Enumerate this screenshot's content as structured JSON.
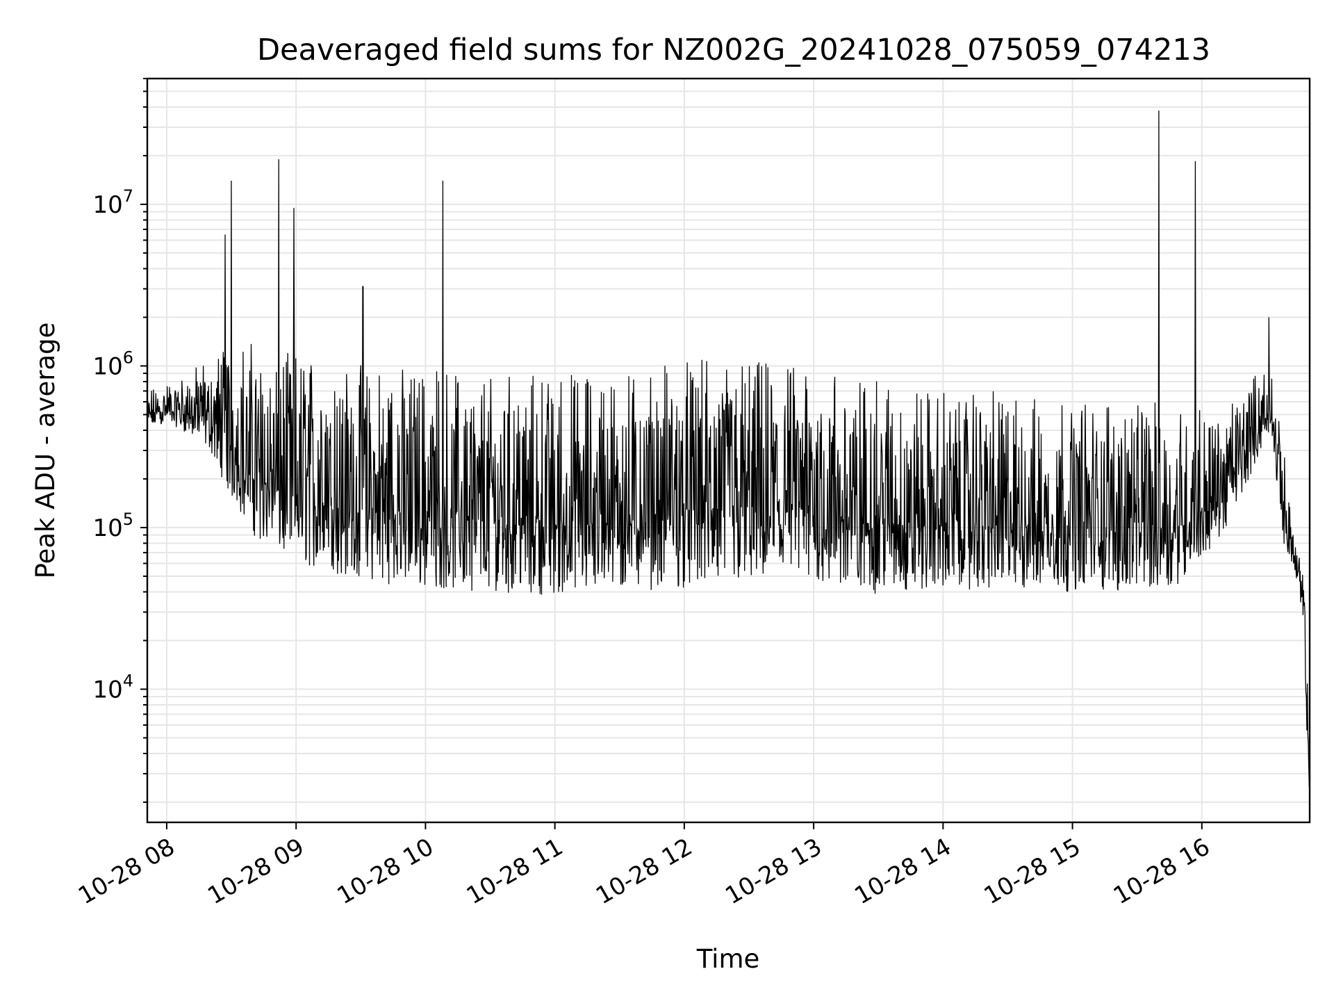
{
  "chart_data": {
    "type": "line",
    "title": "Deaveraged field sums for NZ002G_20241028_075059_074213",
    "xlabel": "Time",
    "ylabel": "Peak ADU - average",
    "yscale": "log",
    "ylim": [
      1500,
      60000000
    ],
    "xlim": [
      "2024-10-28 07:51",
      "2024-10-28 16:50"
    ],
    "grid": true,
    "grid_minor": true,
    "line_color": "#000000",
    "x_ticks": [
      {
        "t": "2024-10-28 08:00",
        "label": "10-28 08"
      },
      {
        "t": "2024-10-28 09:00",
        "label": "10-28 09"
      },
      {
        "t": "2024-10-28 10:00",
        "label": "10-28 10"
      },
      {
        "t": "2024-10-28 11:00",
        "label": "10-28 11"
      },
      {
        "t": "2024-10-28 12:00",
        "label": "10-28 12"
      },
      {
        "t": "2024-10-28 13:00",
        "label": "10-28 13"
      },
      {
        "t": "2024-10-28 14:00",
        "label": "10-28 14"
      },
      {
        "t": "2024-10-28 15:00",
        "label": "10-28 15"
      },
      {
        "t": "2024-10-28 16:00",
        "label": "10-28 16"
      }
    ],
    "y_ticks": [
      {
        "value": 10000,
        "base": "10",
        "exp": "4"
      },
      {
        "value": 100000,
        "base": "10",
        "exp": "5"
      },
      {
        "value": 1000000,
        "base": "10",
        "exp": "6"
      },
      {
        "value": 10000000,
        "base": "10",
        "exp": "7"
      }
    ],
    "series": [
      {
        "values_approx": "dense noisy trace",
        "x": [
          "2024-10-28 07:51",
          "2024-10-28 08:00",
          "2024-10-28 08:10",
          "2024-10-28 08:20",
          "2024-10-28 08:30",
          "2024-10-28 08:40",
          "2024-10-28 08:50",
          "2024-10-28 09:00",
          "2024-10-28 09:20",
          "2024-10-28 09:40",
          "2024-10-28 10:00",
          "2024-10-28 10:30",
          "2024-10-28 11:00",
          "2024-10-28 11:30",
          "2024-10-28 12:00",
          "2024-10-28 12:30",
          "2024-10-28 13:00",
          "2024-10-28 13:30",
          "2024-10-28 14:00",
          "2024-10-28 14:30",
          "2024-10-28 15:00",
          "2024-10-28 15:30",
          "2024-10-28 15:50",
          "2024-10-28 16:10",
          "2024-10-28 16:25",
          "2024-10-28 16:32",
          "2024-10-28 16:38",
          "2024-10-28 16:43",
          "2024-10-28 16:47",
          "2024-10-28 16:50"
        ],
        "low": [
          400000,
          450000,
          380000,
          300000,
          150000,
          90000,
          70000,
          60000,
          50000,
          45000,
          42000,
          40000,
          38000,
          40000,
          42000,
          45000,
          45000,
          38000,
          42000,
          40000,
          40000,
          40000,
          45000,
          90000,
          250000,
          400000,
          80000,
          55000,
          20000,
          2000
        ],
        "high": [
          700000,
          800000,
          900000,
          1200000,
          1500000,
          1400000,
          1300000,
          1200000,
          1100000,
          1000000,
          1000000,
          1000000,
          900000,
          1000000,
          1100000,
          1100000,
          1000000,
          800000,
          700000,
          700000,
          600000,
          600000,
          600000,
          500000,
          900000,
          1000000,
          300000,
          90000,
          60000,
          5000
        ]
      }
    ],
    "spikes": [
      {
        "x": "2024-10-28 08:27",
        "value": 6500000
      },
      {
        "x": "2024-10-28 08:30",
        "value": 14000000
      },
      {
        "x": "2024-10-28 08:52",
        "value": 19000000
      },
      {
        "x": "2024-10-28 08:59",
        "value": 9500000
      },
      {
        "x": "2024-10-28 09:31",
        "value": 3100000
      },
      {
        "x": "2024-10-28 10:08",
        "value": 14000000
      },
      {
        "x": "2024-10-28 15:40",
        "value": 38000000
      },
      {
        "x": "2024-10-28 15:57",
        "value": 18500000
      },
      {
        "x": "2024-10-28 16:31",
        "value": 2000000
      }
    ]
  }
}
